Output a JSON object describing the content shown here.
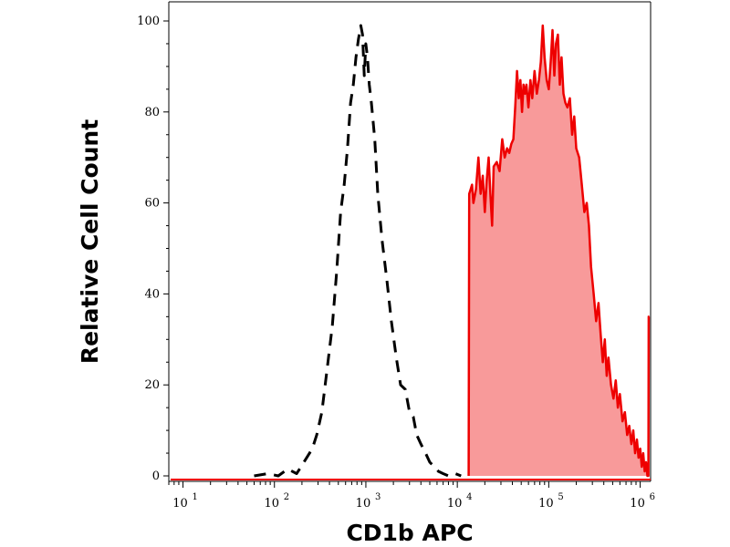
{
  "chart_data": {
    "type": "area",
    "title": "",
    "xlabel": "CD1b APC",
    "ylabel": "Relative Cell Count",
    "xscale": "log",
    "xlim": [
      7,
      1300000
    ],
    "ylim": [
      0,
      100
    ],
    "grid": false,
    "yticks": [
      {
        "value": 0,
        "label": "0"
      },
      {
        "value": 20,
        "label": "20"
      },
      {
        "value": 40,
        "label": "40"
      },
      {
        "value": 60,
        "label": "60"
      },
      {
        "value": 80,
        "label": "80"
      },
      {
        "value": 100,
        "label": "100"
      }
    ],
    "xticks": [
      {
        "value": 10,
        "base": "10",
        "exp": "1"
      },
      {
        "value": 100,
        "base": "10",
        "exp": "2"
      },
      {
        "value": 1000,
        "base": "10",
        "exp": "3"
      },
      {
        "value": 10000,
        "base": "10",
        "exp": "4"
      },
      {
        "value": 100000,
        "base": "10",
        "exp": "5"
      },
      {
        "value": 1000000,
        "base": "10",
        "exp": "6"
      }
    ],
    "series": [
      {
        "style": "dashed",
        "color": "#000000",
        "points": [
          [
            60,
            0
          ],
          [
            85,
            0.5
          ],
          [
            110,
            0
          ],
          [
            140,
            1.5
          ],
          [
            175,
            0.5
          ],
          [
            210,
            3
          ],
          [
            260,
            6
          ],
          [
            290,
            9
          ],
          [
            330,
            14
          ],
          [
            380,
            24
          ],
          [
            430,
            33
          ],
          [
            480,
            45
          ],
          [
            530,
            58
          ],
          [
            580,
            64
          ],
          [
            630,
            72
          ],
          [
            680,
            82
          ],
          [
            730,
            86
          ],
          [
            780,
            92
          ],
          [
            830,
            96
          ],
          [
            880,
            99
          ],
          [
            920,
            97
          ],
          [
            960,
            88
          ],
          [
            1000,
            95
          ],
          [
            1040,
            92
          ],
          [
            1090,
            86
          ],
          [
            1150,
            82
          ],
          [
            1250,
            74
          ],
          [
            1350,
            62
          ],
          [
            1500,
            52
          ],
          [
            1700,
            43
          ],
          [
            1900,
            34
          ],
          [
            2150,
            26
          ],
          [
            2400,
            20
          ],
          [
            2700,
            19
          ],
          [
            3000,
            14
          ],
          [
            3300,
            13
          ],
          [
            3600,
            9
          ],
          [
            4000,
            7
          ],
          [
            4500,
            5
          ],
          [
            5000,
            3
          ],
          [
            5600,
            2
          ],
          [
            6200,
            1
          ],
          [
            7000,
            0.5
          ],
          [
            8000,
            0
          ],
          [
            9500,
            0.5
          ],
          [
            11000,
            0
          ]
        ]
      },
      {
        "style": "filled",
        "color": "#ee0000",
        "fill": "#f89a9a",
        "points": [
          [
            13300,
            0
          ],
          [
            13500,
            62
          ],
          [
            14000,
            63
          ],
          [
            14500,
            64
          ],
          [
            15000,
            60
          ],
          [
            16000,
            63
          ],
          [
            17000,
            70
          ],
          [
            18000,
            62
          ],
          [
            19000,
            66
          ],
          [
            20000,
            58
          ],
          [
            21000,
            65
          ],
          [
            22000,
            70
          ],
          [
            23000,
            62
          ],
          [
            24000,
            55
          ],
          [
            25000,
            68
          ],
          [
            27000,
            69
          ],
          [
            29000,
            67
          ],
          [
            31000,
            74
          ],
          [
            33000,
            70
          ],
          [
            35000,
            72
          ],
          [
            37000,
            71
          ],
          [
            39000,
            73
          ],
          [
            41000,
            74
          ],
          [
            43000,
            81
          ],
          [
            45000,
            89
          ],
          [
            47000,
            83
          ],
          [
            49000,
            87
          ],
          [
            51000,
            80
          ],
          [
            53000,
            86
          ],
          [
            55000,
            84
          ],
          [
            57000,
            86
          ],
          [
            60000,
            81
          ],
          [
            63000,
            87
          ],
          [
            66000,
            83
          ],
          [
            70000,
            89
          ],
          [
            74000,
            84
          ],
          [
            78000,
            87
          ],
          [
            82000,
            91
          ],
          [
            86000,
            99
          ],
          [
            90000,
            92
          ],
          [
            95000,
            87
          ],
          [
            100000,
            85
          ],
          [
            105000,
            91
          ],
          [
            110000,
            98
          ],
          [
            115000,
            88
          ],
          [
            120000,
            95
          ],
          [
            126000,
            97
          ],
          [
            132000,
            86
          ],
          [
            138000,
            92
          ],
          [
            145000,
            84
          ],
          [
            152000,
            82
          ],
          [
            160000,
            81
          ],
          [
            170000,
            83
          ],
          [
            180000,
            75
          ],
          [
            190000,
            79
          ],
          [
            200000,
            72
          ],
          [
            215000,
            70
          ],
          [
            230000,
            64
          ],
          [
            245000,
            58
          ],
          [
            260000,
            60
          ],
          [
            275000,
            55
          ],
          [
            290000,
            46
          ],
          [
            310000,
            40
          ],
          [
            330000,
            34
          ],
          [
            350000,
            38
          ],
          [
            370000,
            31
          ],
          [
            390000,
            25
          ],
          [
            410000,
            30
          ],
          [
            430000,
            22
          ],
          [
            450000,
            26
          ],
          [
            480000,
            20
          ],
          [
            510000,
            17
          ],
          [
            540000,
            21
          ],
          [
            570000,
            15
          ],
          [
            600000,
            18
          ],
          [
            640000,
            12
          ],
          [
            680000,
            14
          ],
          [
            720000,
            9
          ],
          [
            760000,
            11
          ],
          [
            800000,
            7
          ],
          [
            840000,
            10
          ],
          [
            880000,
            5
          ],
          [
            920000,
            8
          ],
          [
            960000,
            4
          ],
          [
            1000000,
            6
          ],
          [
            1040000,
            2
          ],
          [
            1080000,
            5
          ],
          [
            1120000,
            1
          ],
          [
            1160000,
            3
          ],
          [
            1200000,
            0
          ],
          [
            1230000,
            0
          ],
          [
            1240000,
            35
          ],
          [
            1260000,
            35
          ]
        ]
      }
    ]
  }
}
